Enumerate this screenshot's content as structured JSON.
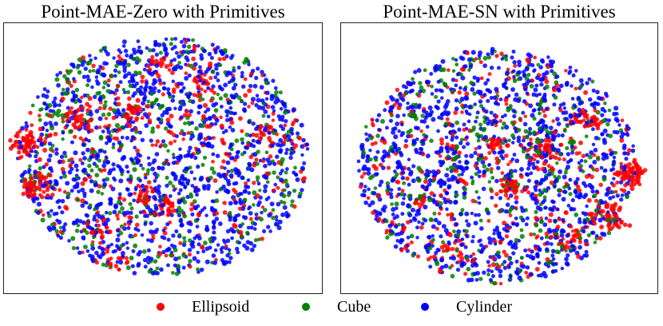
{
  "chart_data": [
    {
      "type": "scatter",
      "title": "Point-MAE-Zero with Primitives",
      "series": [
        {
          "name": "Ellipsoid",
          "color": "#ff0000"
        },
        {
          "name": "Cube",
          "color": "#008000"
        },
        {
          "name": "Cylinder",
          "color": "#0000ff"
        }
      ],
      "clusters": {
        "Ellipsoid": "dense clumps along the left edge and scattered small clumps, more toward upper half",
        "Cube": "sparse, spread throughout",
        "Cylinder": "dominant, spread throughout"
      },
      "grid": false,
      "axes_visible": false
    },
    {
      "type": "scatter",
      "title": "Point-MAE-SN with Primitives",
      "series": [
        {
          "name": "Ellipsoid",
          "color": "#ff0000"
        },
        {
          "name": "Cube",
          "color": "#008000"
        },
        {
          "name": "Cylinder",
          "color": "#0000ff"
        }
      ],
      "clusters": {
        "Ellipsoid": "dense clumps on the right side and lower center",
        "Cube": "sparse, concentrated upper-middle",
        "Cylinder": "dominant, spread throughout"
      },
      "grid": false,
      "axes_visible": false
    }
  ],
  "legend": {
    "placement": "bottom",
    "items": [
      {
        "label": "Ellipsoid",
        "color": "#ff0000"
      },
      {
        "label": "Cube",
        "color": "#008000"
      },
      {
        "label": "Cylinder",
        "color": "#0000ff"
      }
    ]
  }
}
